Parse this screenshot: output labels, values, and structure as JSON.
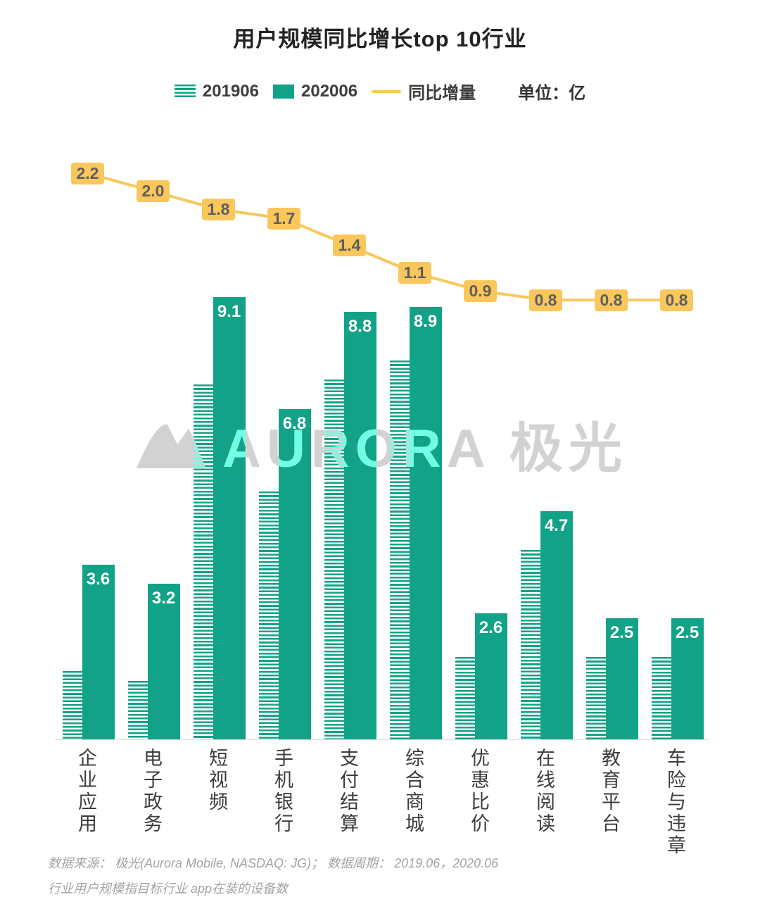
{
  "title": "用户规模同比增长top 10行业",
  "legend": {
    "series1": "201906",
    "series2": "202006",
    "line": "同比增量",
    "unit": "单位：亿"
  },
  "watermark": "AURORA 极光",
  "footer": {
    "line1": "数据来源： 极光(Aurora Mobile, NASDAQ: JG)； 数据周期： 2019.06，2020.06",
    "line2": "行业用户规模指目标行业 app在装的设备数"
  },
  "colors": {
    "teal": "#12A287",
    "yellow": "#F9C75B",
    "line_label_text": "#5F5F5F"
  },
  "chart_data": {
    "type": "bar",
    "title": "用户规模同比增长top 10行业",
    "unit": "亿",
    "categories": [
      "企业应用",
      "电子政务",
      "短视频",
      "手机银行",
      "支付结算",
      "综合商城",
      "优惠比价",
      "在线阅读",
      "教育平台",
      "车险与违章"
    ],
    "series": [
      {
        "name": "201906",
        "type": "bar",
        "style": "striped",
        "values": [
          1.4,
          1.2,
          7.3,
          5.1,
          7.4,
          7.8,
          1.7,
          3.9,
          1.7,
          1.7
        ]
      },
      {
        "name": "202006",
        "type": "bar",
        "style": "solid",
        "values": [
          3.6,
          3.2,
          9.1,
          6.8,
          8.8,
          8.9,
          2.6,
          4.7,
          2.5,
          2.5
        ]
      },
      {
        "name": "同比增量",
        "type": "line",
        "values": [
          2.2,
          2.0,
          1.8,
          1.7,
          1.4,
          1.1,
          0.9,
          0.8,
          0.8,
          0.8
        ]
      }
    ],
    "bar_value_labels_series": "202006",
    "line_value_labels": true,
    "legend_position": "top",
    "grid": false,
    "ylim": [
      0,
      9.5
    ]
  }
}
